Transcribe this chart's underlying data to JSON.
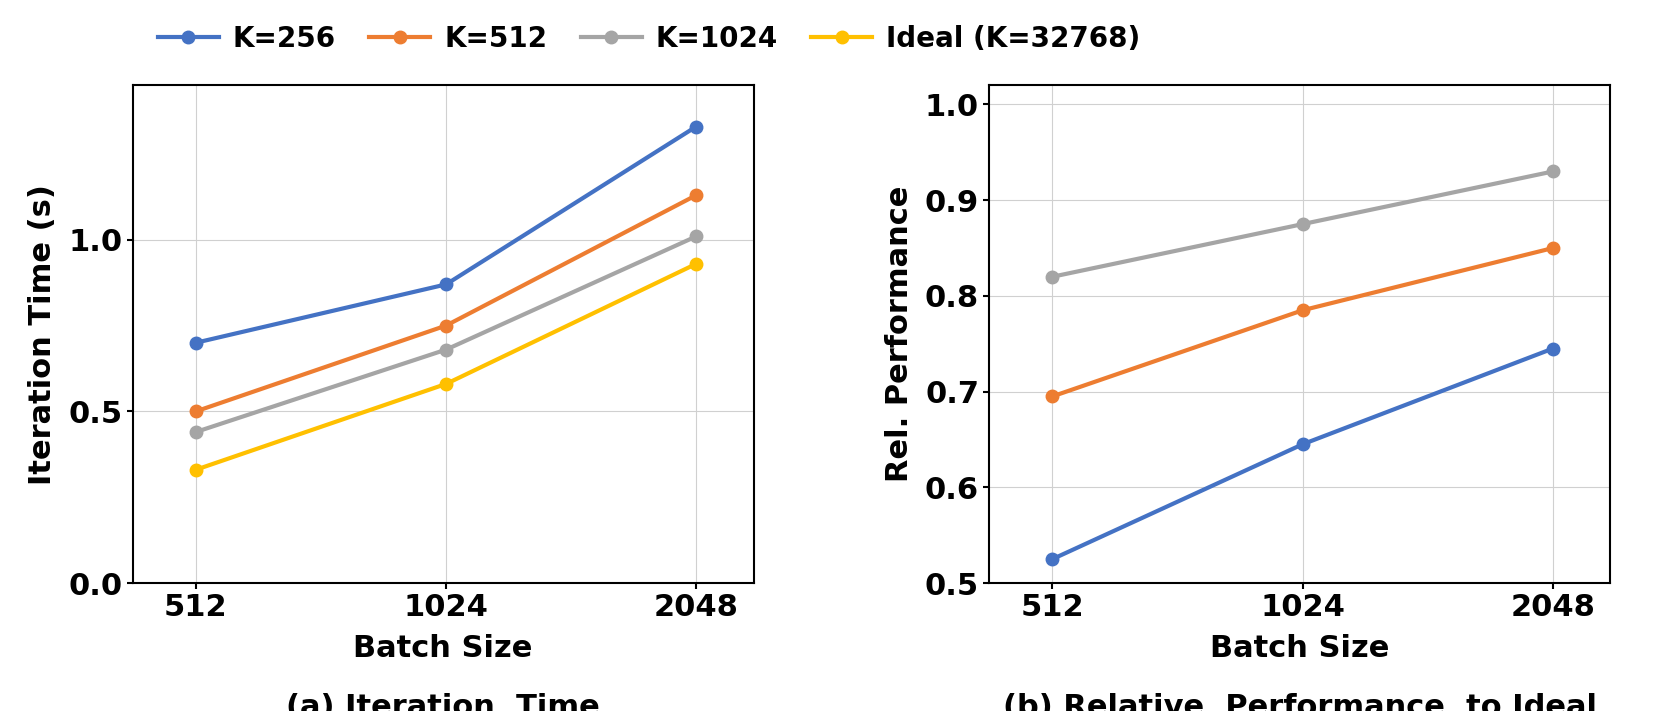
{
  "batch_sizes": [
    512,
    1024,
    2048
  ],
  "left_plot": {
    "ylabel": "Iteration Time (s)",
    "xlabel": "Batch Size",
    "caption": "(a) Iteration  Time",
    "ylim": [
      0,
      1.45
    ],
    "yticks": [
      0,
      0.5,
      1.0
    ],
    "series": {
      "K=256": {
        "color": "#4472C4",
        "values": [
          0.7,
          0.87,
          1.33
        ]
      },
      "K=512": {
        "color": "#ED7D31",
        "values": [
          0.5,
          0.75,
          1.13
        ]
      },
      "K=1024": {
        "color": "#A5A5A5",
        "values": [
          0.44,
          0.68,
          1.01
        ]
      },
      "Ideal (K=32768)": {
        "color": "#FFC000",
        "values": [
          0.33,
          0.58,
          0.93
        ]
      }
    }
  },
  "right_plot": {
    "ylabel": "Rel. Performance",
    "xlabel": "Batch Size",
    "caption": "(b) Relative  Performance  to Ideal",
    "ylim": [
      0.5,
      1.02
    ],
    "yticks": [
      0.5,
      0.6,
      0.7,
      0.8,
      0.9,
      1.0
    ],
    "series": {
      "K=256": {
        "color": "#4472C4",
        "values": [
          0.525,
          0.645,
          0.745
        ]
      },
      "K=512": {
        "color": "#ED7D31",
        "values": [
          0.695,
          0.785,
          0.85
        ]
      },
      "K=1024": {
        "color": "#A5A5A5",
        "values": [
          0.82,
          0.875,
          0.93
        ]
      }
    }
  },
  "legend_labels": [
    "K=256",
    "K=512",
    "K=1024",
    "Ideal (K=32768)"
  ],
  "legend_colors": [
    "#4472C4",
    "#ED7D31",
    "#A5A5A5",
    "#FFC000"
  ],
  "marker": "o",
  "linewidth": 3.0,
  "markersize": 9,
  "grid_color": "#D0D0D0",
  "background_color": "#FFFFFF",
  "caption_fontsize": 22,
  "axis_label_fontsize": 22,
  "tick_fontsize": 22,
  "legend_fontsize": 20
}
